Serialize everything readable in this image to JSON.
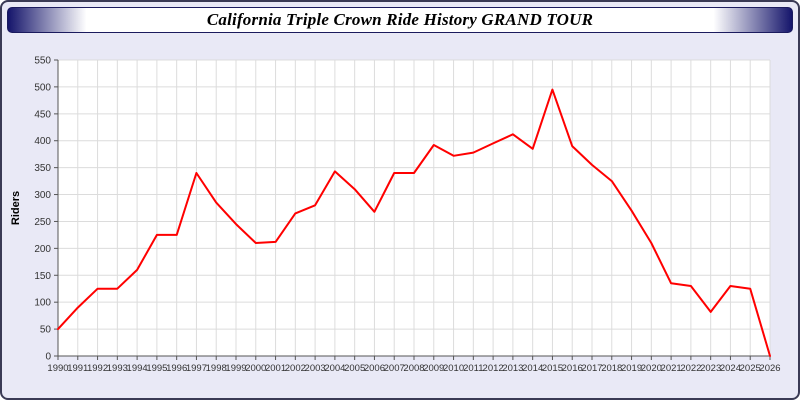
{
  "page": {
    "title": "California Triple Crown Ride History GRAND TOUR"
  },
  "colors": {
    "line": "#ff0000",
    "title_navy": "#15156b",
    "page_background": "#e9e9f6",
    "plot_background": "#ffffff",
    "grid": "#dcdcdc",
    "axis": "#555555",
    "tick_label": "#333333"
  },
  "chart_data": {
    "type": "line",
    "title": "California Triple Crown Ride History GRAND TOUR",
    "xlabel": "",
    "ylabel": "Riders",
    "ylim": [
      0,
      550
    ],
    "ytick_step": 50,
    "grid": true,
    "legend": "none",
    "x": [
      1990,
      1991,
      1992,
      1993,
      1994,
      1995,
      1996,
      1997,
      1998,
      1999,
      2000,
      2001,
      2002,
      2003,
      2004,
      2005,
      2006,
      2007,
      2008,
      2009,
      2010,
      2011,
      2012,
      2013,
      2014,
      2015,
      2016,
      2017,
      2018,
      2019,
      2020,
      2021,
      2022,
      2023,
      2024,
      2025,
      2026
    ],
    "series": [
      {
        "name": "Riders",
        "color": "#ff0000",
        "values": [
          50,
          90,
          125,
          125,
          160,
          225,
          225,
          340,
          285,
          245,
          210,
          212,
          265,
          280,
          343,
          310,
          268,
          340,
          340,
          392,
          372,
          378,
          395,
          412,
          385,
          495,
          390,
          355,
          325,
          270,
          210,
          135,
          130,
          82,
          130,
          125,
          0
        ]
      }
    ]
  }
}
